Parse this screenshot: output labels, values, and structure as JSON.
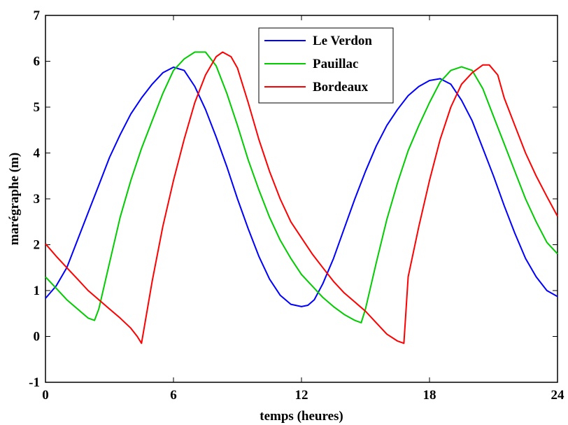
{
  "chart_data": {
    "type": "line",
    "xlabel": "temps (heures)",
    "ylabel": "marégraphe (m)",
    "xlim": [
      0,
      24
    ],
    "ylim": [
      -1,
      7
    ],
    "xticks": [
      0,
      6,
      12,
      18,
      24
    ],
    "yticks": [
      -1,
      0,
      1,
      2,
      3,
      4,
      5,
      6,
      7
    ],
    "grid": false,
    "legend_position": "top-right",
    "series": [
      {
        "name": "Le Verdon",
        "color": "#0000ff",
        "x": [
          0,
          0.5,
          1,
          1.5,
          2,
          2.5,
          3,
          3.5,
          4,
          4.5,
          5,
          5.5,
          6,
          6.5,
          7,
          7.5,
          8,
          8.5,
          9,
          9.5,
          10,
          10.5,
          11,
          11.5,
          12,
          12.3,
          12.6,
          13,
          13.5,
          14,
          14.5,
          15,
          15.5,
          16,
          16.5,
          17,
          17.5,
          18,
          18.5,
          19,
          19.5,
          20,
          20.5,
          21,
          21.5,
          22,
          22.5,
          23,
          23.5,
          24
        ],
        "y": [
          0.83,
          1.1,
          1.5,
          2.1,
          2.7,
          3.3,
          3.9,
          4.4,
          4.85,
          5.2,
          5.5,
          5.75,
          5.87,
          5.8,
          5.45,
          4.95,
          4.35,
          3.7,
          3.0,
          2.35,
          1.75,
          1.25,
          0.9,
          0.7,
          0.65,
          0.68,
          0.8,
          1.15,
          1.7,
          2.35,
          3.0,
          3.6,
          4.15,
          4.6,
          4.95,
          5.25,
          5.45,
          5.58,
          5.62,
          5.5,
          5.15,
          4.7,
          4.1,
          3.5,
          2.85,
          2.25,
          1.7,
          1.3,
          1.0,
          0.87
        ]
      },
      {
        "name": "Pauillac",
        "color": "#00cc00",
        "x": [
          0,
          0.5,
          1,
          1.5,
          2,
          2.3,
          2.5,
          3,
          3.5,
          4,
          4.5,
          5,
          5.5,
          6,
          6.5,
          7,
          7.5,
          8,
          8.5,
          9,
          9.5,
          10,
          10.5,
          11,
          11.5,
          12,
          12.5,
          13,
          13.5,
          14,
          14.5,
          14.8,
          15,
          15.5,
          16,
          16.5,
          17,
          17.5,
          18,
          18.5,
          19,
          19.5,
          20,
          20.5,
          21,
          21.5,
          22,
          22.5,
          23,
          23.5,
          24
        ],
        "y": [
          1.3,
          1.05,
          0.8,
          0.6,
          0.4,
          0.35,
          0.6,
          1.6,
          2.6,
          3.4,
          4.1,
          4.7,
          5.3,
          5.8,
          6.05,
          6.2,
          6.2,
          5.9,
          5.3,
          4.6,
          3.85,
          3.2,
          2.6,
          2.1,
          1.7,
          1.35,
          1.1,
          0.85,
          0.65,
          0.48,
          0.35,
          0.3,
          0.6,
          1.6,
          2.55,
          3.35,
          4.05,
          4.6,
          5.1,
          5.55,
          5.8,
          5.88,
          5.8,
          5.4,
          4.8,
          4.2,
          3.6,
          3.0,
          2.5,
          2.05,
          1.8
        ]
      },
      {
        "name": "Bordeaux",
        "color": "#ff0000",
        "x": [
          0,
          0.5,
          1,
          1.5,
          2,
          2.5,
          3,
          3.5,
          4,
          4.3,
          4.5,
          5,
          5.5,
          6,
          6.5,
          7,
          7.5,
          8,
          8.3,
          8.7,
          9,
          9.5,
          10,
          10.5,
          11,
          11.5,
          12,
          12.5,
          13,
          13.5,
          14,
          14.5,
          15,
          15.5,
          16,
          16.5,
          16.8,
          17,
          17.5,
          18,
          18.5,
          19,
          19.5,
          20,
          20.5,
          20.8,
          21.2,
          21.5,
          22,
          22.5,
          23,
          23.5,
          24
        ],
        "y": [
          2.02,
          1.75,
          1.5,
          1.25,
          1.0,
          0.8,
          0.6,
          0.4,
          0.18,
          0.0,
          -0.15,
          1.2,
          2.4,
          3.4,
          4.3,
          5.1,
          5.7,
          6.1,
          6.2,
          6.1,
          5.85,
          5.1,
          4.3,
          3.6,
          3.0,
          2.5,
          2.15,
          1.8,
          1.5,
          1.2,
          0.95,
          0.75,
          0.55,
          0.3,
          0.05,
          -0.1,
          -0.15,
          1.3,
          2.4,
          3.4,
          4.3,
          5.0,
          5.5,
          5.75,
          5.92,
          5.92,
          5.7,
          5.2,
          4.6,
          4.0,
          3.5,
          3.05,
          2.62
        ]
      }
    ]
  }
}
